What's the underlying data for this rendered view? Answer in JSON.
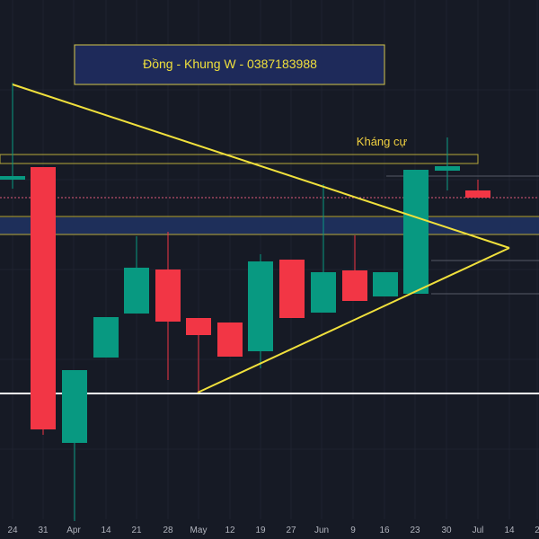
{
  "header": {
    "title": "Đồng - Khung W - 0387183988"
  },
  "annotation": "Kháng cự",
  "x_axis": {
    "labels": [
      "24",
      "31",
      "Apr",
      "14",
      "21",
      "28",
      "May",
      "12",
      "19",
      "27",
      "Jun",
      "9",
      "16",
      "23",
      "30",
      "Jul",
      "14",
      "2"
    ]
  }
}
